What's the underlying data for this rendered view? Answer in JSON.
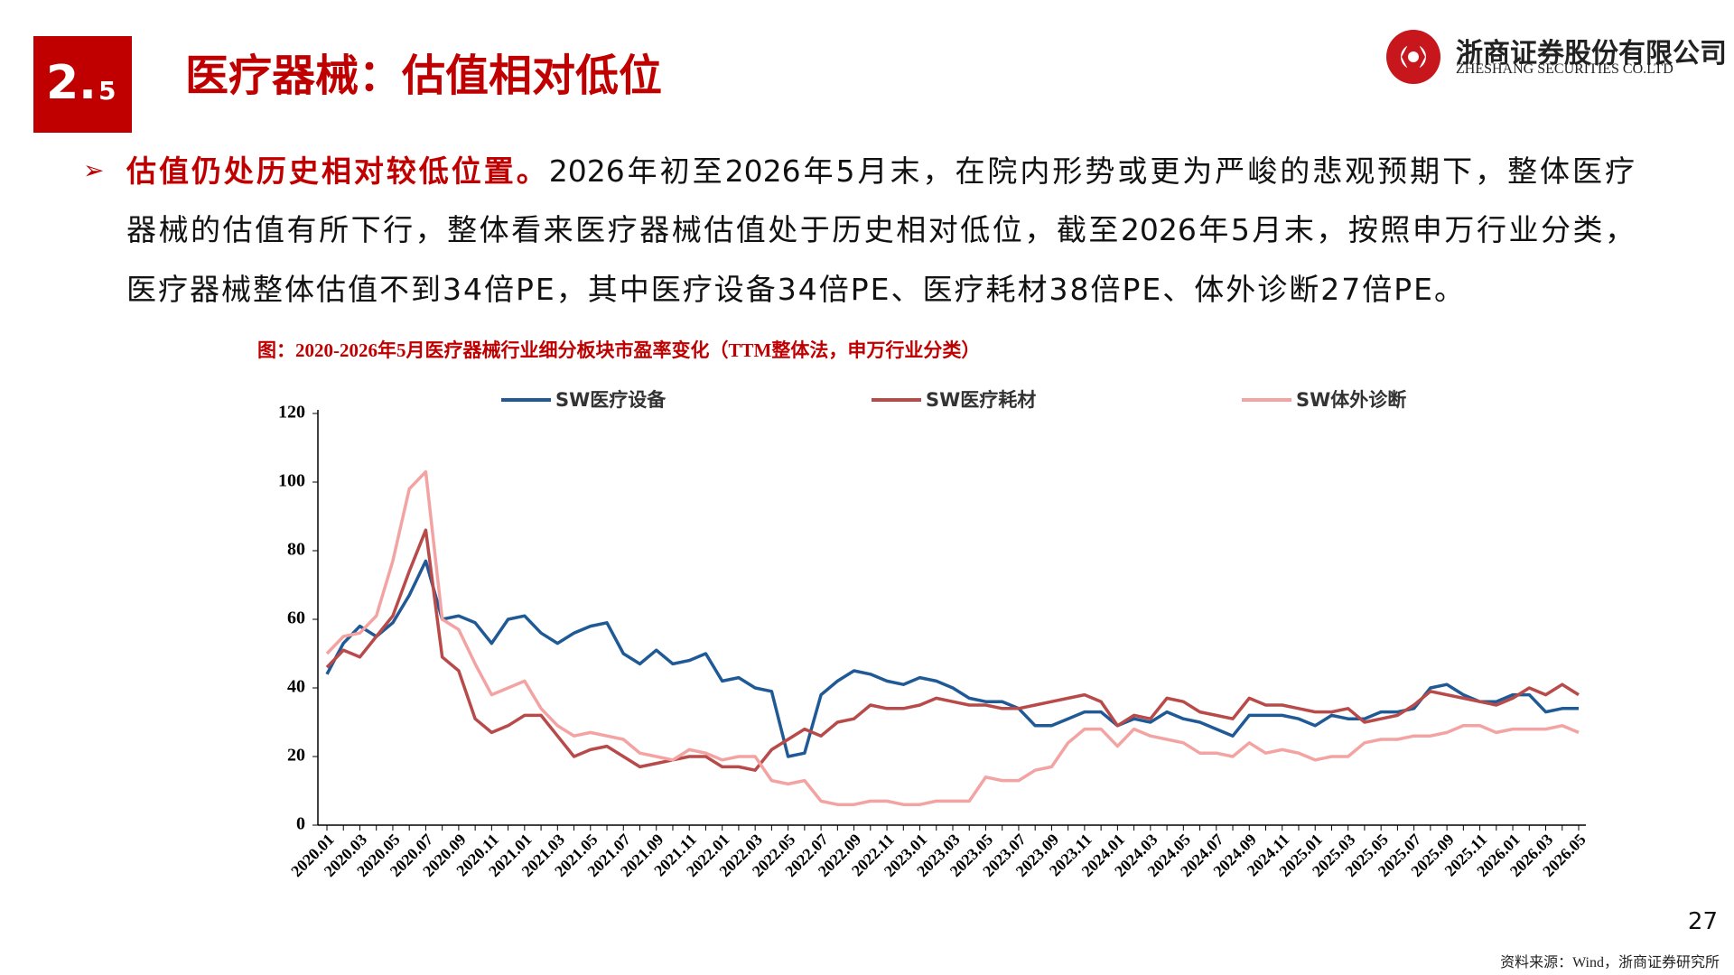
{
  "header": {
    "section_major": "2.",
    "section_minor": "5",
    "title": "医疗器械：估值相对低位",
    "logo_cn": "浙商证券股份有限公司",
    "logo_en": "ZHESHANG SECURITIES CO.LTD"
  },
  "bullet": {
    "lead": "估值仍处历史相对较低位置。",
    "lines": [
      "2026年初至2026年5月末，在院内形势或更为严峻的悲观预期下，整体医疗",
      "器械的估值有所下行，整体看来医疗器械估值处于历史相对低位，截至2026年5月末，按照申万行业分类，",
      "医疗器械整体估值不到34倍PE，其中医疗设备34倍PE、医疗耗材38倍PE、体外诊断27倍PE。"
    ]
  },
  "caption": "图：2020-2026年5月医疗器械行业细分板块市盈率变化（TTM整体法，申万行业分类）",
  "chart_data": {
    "type": "line",
    "categories": [
      "2020.01",
      null,
      "2020.03",
      null,
      "2020.05",
      null,
      "2020.07",
      null,
      "2020.09",
      null,
      "2020.11",
      null,
      "2021.01",
      null,
      "2021.03",
      null,
      "2021.05",
      null,
      "2021.07",
      null,
      "2021.09",
      null,
      "2021.11",
      null,
      "2022.01",
      null,
      "2022.03",
      null,
      "2022.05",
      null,
      "2022.07",
      null,
      "2022.09",
      null,
      "2022.11",
      null,
      "2023.01",
      null,
      "2023.03",
      null,
      "2023.05",
      null,
      "2023.07",
      null,
      "2023.09",
      null,
      "2023.11",
      null,
      "2024.01",
      null,
      "2024.03",
      null,
      "2024.05",
      null,
      "2024.07",
      null,
      "2024.09",
      null,
      "2024.11",
      null,
      "2025.01",
      null,
      "2025.03",
      null,
      "2025.05",
      null,
      "2025.07",
      null,
      "2025.09",
      null,
      "2025.11",
      null,
      "2026.01",
      null,
      "2026.03",
      null,
      "2026.05"
    ],
    "series": [
      {
        "name": "SW医疗设备",
        "color": "#1f5a96",
        "values": [
          44,
          53,
          58,
          55,
          59,
          67,
          77,
          60,
          61,
          59,
          53,
          60,
          61,
          56,
          53,
          56,
          58,
          59,
          50,
          47,
          51,
          47,
          48,
          50,
          42,
          43,
          40,
          39,
          20,
          21,
          38,
          42,
          45,
          44,
          42,
          41,
          43,
          42,
          40,
          37,
          36,
          36,
          34,
          29,
          29,
          31,
          33,
          33,
          29,
          31,
          30,
          33,
          31,
          30,
          28,
          26,
          32,
          32,
          32,
          31,
          29,
          32,
          31,
          31,
          33,
          33,
          34,
          40,
          41,
          38,
          36,
          36,
          38,
          38,
          33,
          34,
          34
        ]
      },
      {
        "name": "SW医疗耗材",
        "color": "#b84a4a",
        "values": [
          46,
          51,
          49,
          55,
          61,
          74,
          86,
          49,
          45,
          31,
          27,
          29,
          32,
          32,
          26,
          20,
          22,
          23,
          20,
          17,
          18,
          19,
          20,
          20,
          17,
          17,
          16,
          22,
          25,
          28,
          26,
          30,
          31,
          35,
          34,
          34,
          35,
          37,
          36,
          35,
          35,
          34,
          34,
          35,
          36,
          37,
          38,
          36,
          29,
          32,
          31,
          37,
          36,
          33,
          32,
          31,
          37,
          35,
          35,
          34,
          33,
          33,
          34,
          30,
          31,
          32,
          35,
          39,
          38,
          37,
          36,
          35,
          37,
          40,
          38,
          41,
          38
        ]
      },
      {
        "name": "SW体外诊断",
        "color": "#f4a3a3",
        "values": [
          50,
          55,
          56,
          61,
          77,
          98,
          103,
          60,
          57,
          47,
          38,
          40,
          42,
          34,
          29,
          26,
          27,
          26,
          25,
          21,
          20,
          19,
          22,
          21,
          19,
          20,
          20,
          13,
          12,
          13,
          7,
          6,
          6,
          7,
          7,
          6,
          6,
          7,
          7,
          7,
          14,
          13,
          13,
          16,
          17,
          24,
          28,
          28,
          23,
          28,
          26,
          25,
          24,
          21,
          21,
          20,
          24,
          21,
          22,
          21,
          19,
          20,
          20,
          24,
          25,
          25,
          26,
          26,
          27,
          29,
          29,
          27,
          28,
          28,
          28,
          29,
          27
        ]
      }
    ],
    "ylim": [
      0,
      120
    ],
    "yticks": [
      0,
      20,
      40,
      60,
      80,
      100,
      120
    ],
    "grid": false,
    "legend": "top"
  },
  "page_number": "27",
  "source": "资料来源：Wind，浙商证券研究所"
}
